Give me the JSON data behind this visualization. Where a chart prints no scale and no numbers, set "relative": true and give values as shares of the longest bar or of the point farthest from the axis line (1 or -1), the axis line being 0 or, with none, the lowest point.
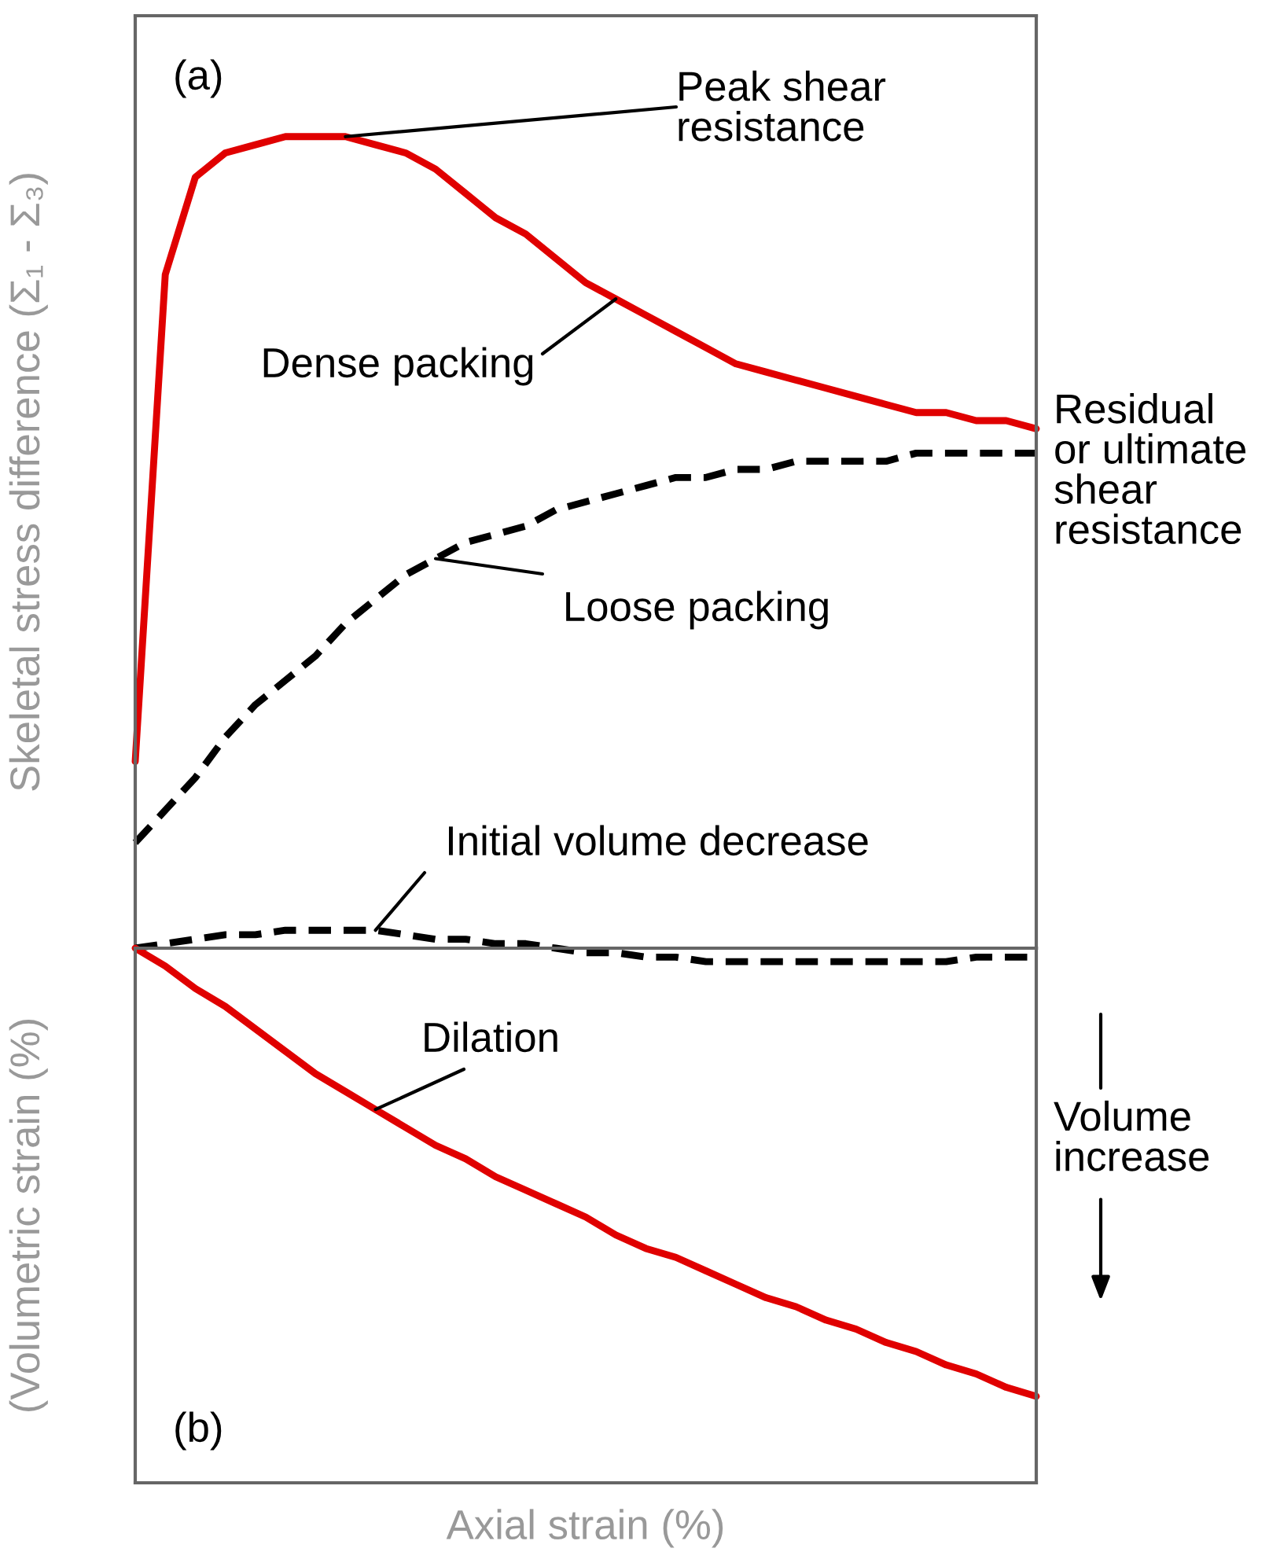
{
  "chart_data": [
    {
      "type": "line",
      "relative": true,
      "tick_labels": false,
      "legend": false,
      "ylabel": "Skeletal stress difference (Σ₁ - Σ₃)",
      "categories": [
        null,
        null,
        null,
        null,
        null,
        null,
        null,
        null,
        null,
        null,
        null,
        null,
        null,
        null,
        null,
        null,
        null,
        null,
        null,
        null,
        null,
        null,
        null,
        null,
        null,
        null,
        null,
        null,
        null,
        null,
        null
      ],
      "annotations": [
        "(a)",
        "Peak shear\nresistance",
        "Residual\nor ultimate\nshear\nresistance"
      ],
      "series": [
        {
          "name": "Dense packing",
          "color": "#e00000",
          "line_style": "solid",
          "values": [
            0.23,
            0.83,
            0.95,
            0.98,
            0.99,
            1.0,
            1.0,
            1.0,
            0.99,
            0.98,
            0.96,
            0.93,
            0.9,
            0.88,
            0.85,
            0.82,
            0.8,
            0.78,
            0.76,
            0.74,
            0.72,
            0.71,
            0.7,
            0.69,
            0.68,
            0.67,
            0.66,
            0.66,
            0.65,
            0.65,
            0.64
          ]
        },
        {
          "name": "Loose packing",
          "color": "#000000",
          "line_style": "dashed",
          "values": [
            0.13,
            0.17,
            0.21,
            0.26,
            0.3,
            0.33,
            0.36,
            0.4,
            0.43,
            0.46,
            0.48,
            0.5,
            0.51,
            0.52,
            0.54,
            0.55,
            0.56,
            0.57,
            0.58,
            0.58,
            0.59,
            0.59,
            0.6,
            0.6,
            0.6,
            0.6,
            0.61,
            0.61,
            0.61,
            0.61,
            0.61
          ]
        }
      ]
    },
    {
      "type": "line",
      "relative": true,
      "tick_labels": false,
      "legend": false,
      "ylabel": "(Volumetric strain (%)",
      "xlabel": "Axial strain (%)",
      "categories": [
        null,
        null,
        null,
        null,
        null,
        null,
        null,
        null,
        null,
        null,
        null,
        null,
        null,
        null,
        null,
        null,
        null,
        null,
        null,
        null,
        null,
        null,
        null,
        null,
        null,
        null,
        null,
        null,
        null,
        null,
        null
      ],
      "annotations": [
        "(b)",
        "Volume\nincrease"
      ],
      "series": [
        {
          "name": "Initial volume decrease",
          "color": "#000000",
          "line_style": "dashed",
          "values": [
            0,
            0.01,
            0.02,
            0.03,
            0.03,
            0.04,
            0.04,
            0.04,
            0.04,
            0.03,
            0.02,
            0.02,
            0.01,
            0.01,
            0,
            -0.01,
            -0.01,
            -0.02,
            -0.02,
            -0.03,
            -0.03,
            -0.03,
            -0.03,
            -0.03,
            -0.03,
            -0.03,
            -0.03,
            -0.03,
            -0.02,
            -0.02,
            -0.02
          ]
        },
        {
          "name": "Dilation",
          "color": "#e00000",
          "line_style": "solid",
          "values": [
            0,
            -0.04,
            -0.09,
            -0.13,
            -0.18,
            -0.23,
            -0.28,
            -0.32,
            -0.36,
            -0.4,
            -0.44,
            -0.47,
            -0.51,
            -0.54,
            -0.57,
            -0.6,
            -0.64,
            -0.67,
            -0.69,
            -0.72,
            -0.75,
            -0.78,
            -0.8,
            -0.83,
            -0.85,
            -0.88,
            -0.9,
            -0.93,
            -0.95,
            -0.98,
            -1.0
          ]
        }
      ]
    }
  ]
}
